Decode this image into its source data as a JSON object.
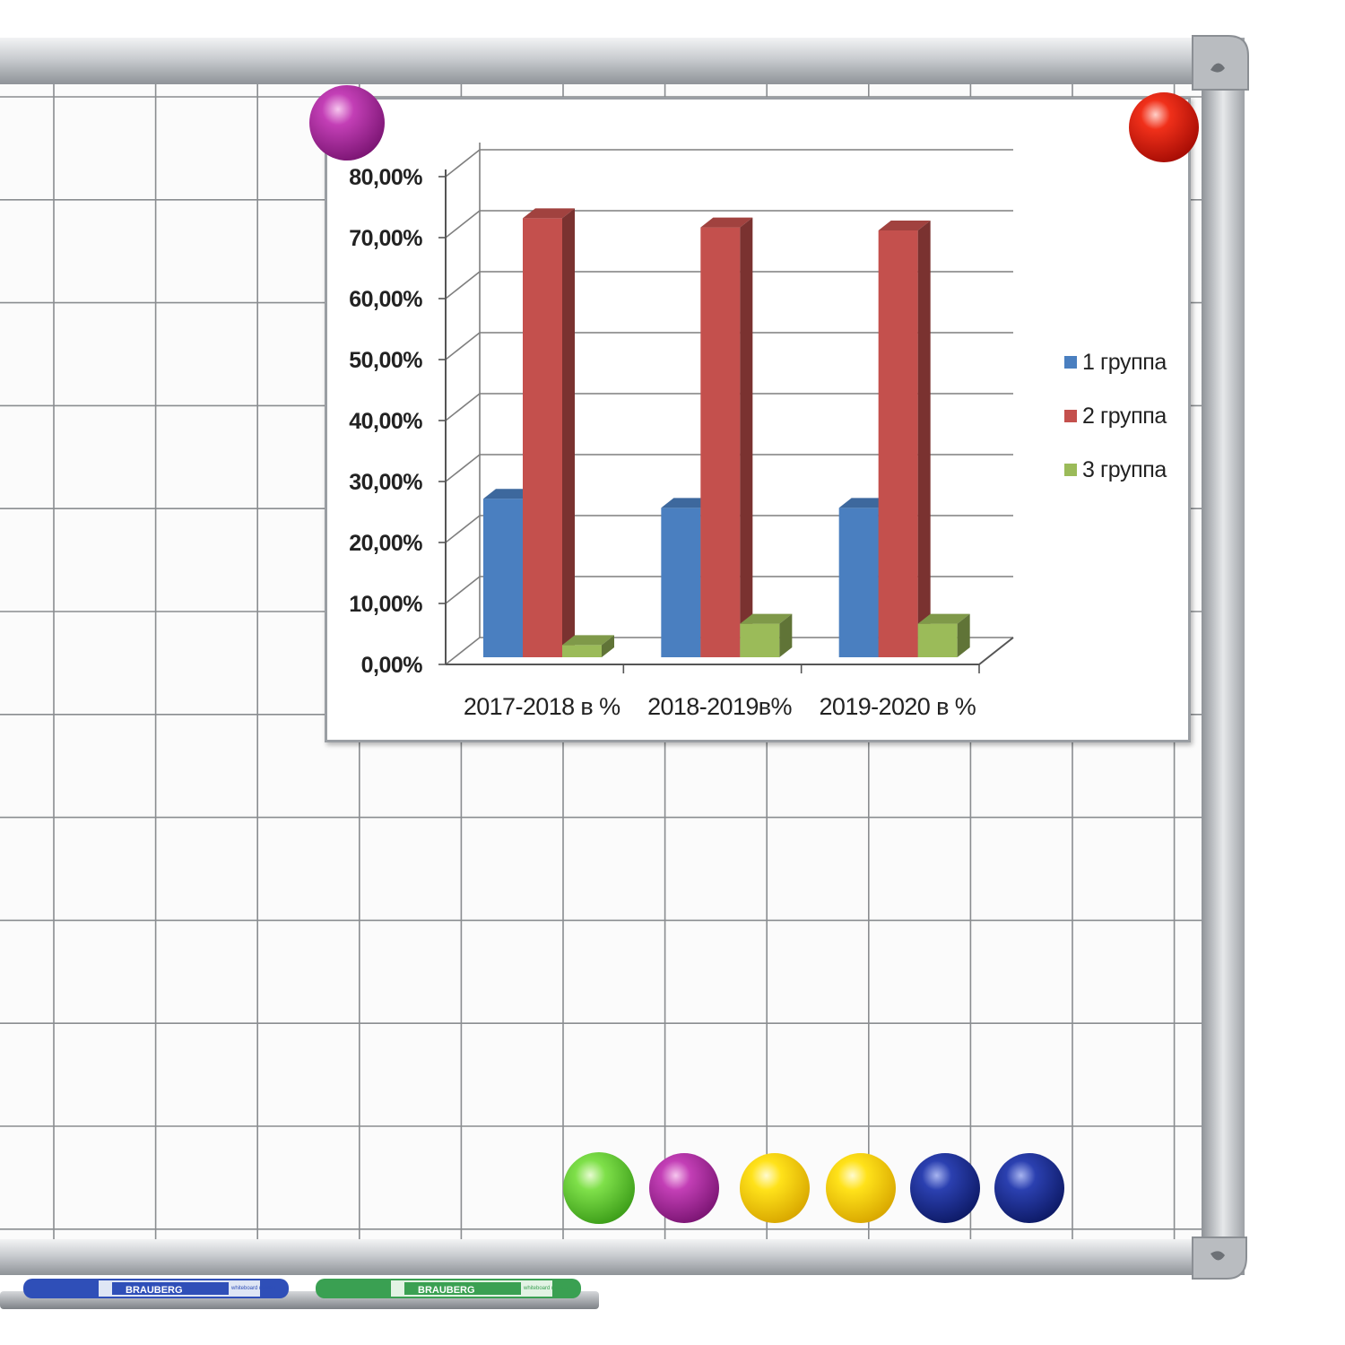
{
  "colors": {
    "series_1": "#4a7fc0",
    "series_2": "#c4504d",
    "series_3": "#9bbb59"
  },
  "icons": {
    "board_magnets": [
      "magenta-magnet-icon",
      "red-magnet-icon",
      "green-magnet-icon",
      "magenta-magnet-icon",
      "yellow-magnet-icon",
      "yellow-magnet-icon",
      "blue-magnet-icon",
      "blue-magnet-icon"
    ],
    "markers": [
      "blue-marker-icon",
      "green-marker-icon"
    ]
  },
  "markers": {
    "brand_text": "BRAUBERG",
    "caption": "whiteboard marker"
  },
  "chart_data": {
    "type": "bar",
    "style": "3d-clustered-column",
    "categories": [
      "2017-2018 в %",
      "2018-2019в%",
      "2019-2020 в %"
    ],
    "series": [
      {
        "name": "1 группа",
        "values": [
          26,
          24.5,
          24.5
        ]
      },
      {
        "name": "2 группа",
        "values": [
          72,
          70.5,
          70
        ]
      },
      {
        "name": "3 группа",
        "values": [
          2,
          5.5,
          5.5
        ]
      }
    ],
    "yticks": [
      "0,00%",
      "10,00%",
      "20,00%",
      "30,00%",
      "40,00%",
      "50,00%",
      "60,00%",
      "70,00%",
      "80,00%"
    ],
    "ylim": [
      0,
      80
    ],
    "grid": true,
    "legend": "right"
  }
}
